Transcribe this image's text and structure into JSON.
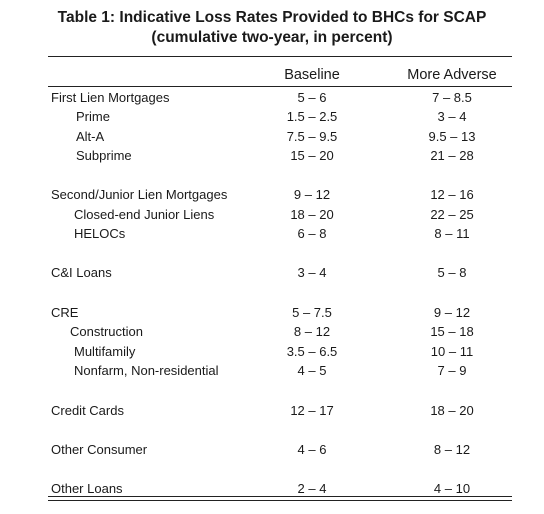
{
  "title": {
    "line1": "Table 1: Indicative Loss Rates Provided to BHCs for SCAP",
    "line2": "(cumulative two-year, in percent)"
  },
  "columns": {
    "baseline": "Baseline",
    "more_adverse": "More Adverse"
  },
  "rows": [
    {
      "label": "First Lien Mortgages",
      "baseline": "5 – 6",
      "more_adverse": "7 – 8.5"
    },
    {
      "label": "Prime",
      "baseline": "1.5 – 2.5",
      "more_adverse": "3 – 4"
    },
    {
      "label": "Alt-A",
      "baseline": "7.5 – 9.5",
      "more_adverse": "9.5 – 13"
    },
    {
      "label": "Subprime",
      "baseline": "15 – 20",
      "more_adverse": "21 – 28"
    },
    {
      "label": "Second/Junior Lien Mortgages",
      "baseline": "9 – 12",
      "more_adverse": "12 – 16"
    },
    {
      "label": "Closed-end Junior Liens",
      "baseline": "18 – 20",
      "more_adverse": "22 – 25"
    },
    {
      "label": "HELOCs",
      "baseline": "6 – 8",
      "more_adverse": "8 – 11"
    },
    {
      "label": "C&I Loans",
      "baseline": "3 – 4",
      "more_adverse": "5 – 8"
    },
    {
      "label": "CRE",
      "baseline": "5 – 7.5",
      "more_adverse": "9 – 12"
    },
    {
      "label": "Construction",
      "baseline": "8 – 12",
      "more_adverse": "15 – 18"
    },
    {
      "label": "Multifamily",
      "baseline": "3.5 – 6.5",
      "more_adverse": "10 – 11"
    },
    {
      "label": "Nonfarm, Non-residential",
      "baseline": "4 – 5",
      "more_adverse": "7 – 9"
    },
    {
      "label": "Credit Cards",
      "baseline": "12 – 17",
      "more_adverse": "18 – 20"
    },
    {
      "label": "Other Consumer",
      "baseline": "4 – 6",
      "more_adverse": "8 – 12"
    },
    {
      "label": "Other Loans",
      "baseline": "2 – 4",
      "more_adverse": "4 – 10"
    }
  ]
}
